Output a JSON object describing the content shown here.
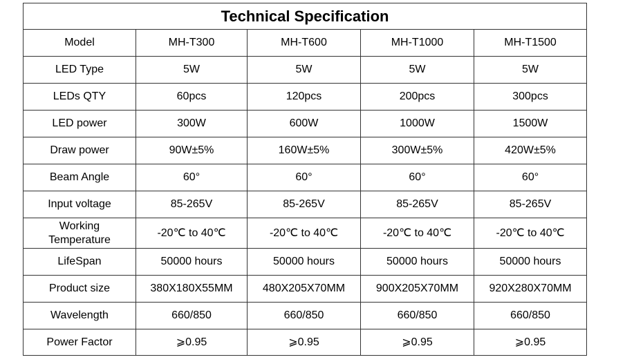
{
  "table": {
    "title": "Technical Specification",
    "rows": [
      [
        "Model",
        "MH-T300",
        "MH-T600",
        "MH-T1000",
        "MH-T1500"
      ],
      [
        "LED Type",
        "5W",
        "5W",
        "5W",
        "5W"
      ],
      [
        "LEDs QTY",
        "60pcs",
        "120pcs",
        "200pcs",
        "300pcs"
      ],
      [
        "LED power",
        "300W",
        "600W",
        "1000W",
        "1500W"
      ],
      [
        "Draw power",
        "90W±5%",
        "160W±5%",
        "300W±5%",
        "420W±5%"
      ],
      [
        "Beam Angle",
        "60°",
        "60°",
        "60°",
        "60°"
      ],
      [
        "Input voltage",
        "85-265V",
        "85-265V",
        "85-265V",
        "85-265V"
      ],
      [
        "Working\nTemperature",
        "-20℃ to 40℃",
        "-20℃ to 40℃",
        "-20℃ to 40℃",
        "-20℃ to 40℃"
      ],
      [
        "LifeSpan",
        "50000 hours",
        "50000 hours",
        "50000 hours",
        "50000 hours"
      ],
      [
        "Product size",
        "380X180X55MM",
        "480X205X70MM",
        "900X205X70MM",
        "920X280X70MM"
      ],
      [
        "Wavelength",
        "660/850",
        "660/850",
        "660/850",
        "660/850"
      ],
      [
        "Power Factor",
        "⩾0.95",
        "⩾0.95",
        "⩾0.95",
        "⩾0.95"
      ]
    ]
  }
}
